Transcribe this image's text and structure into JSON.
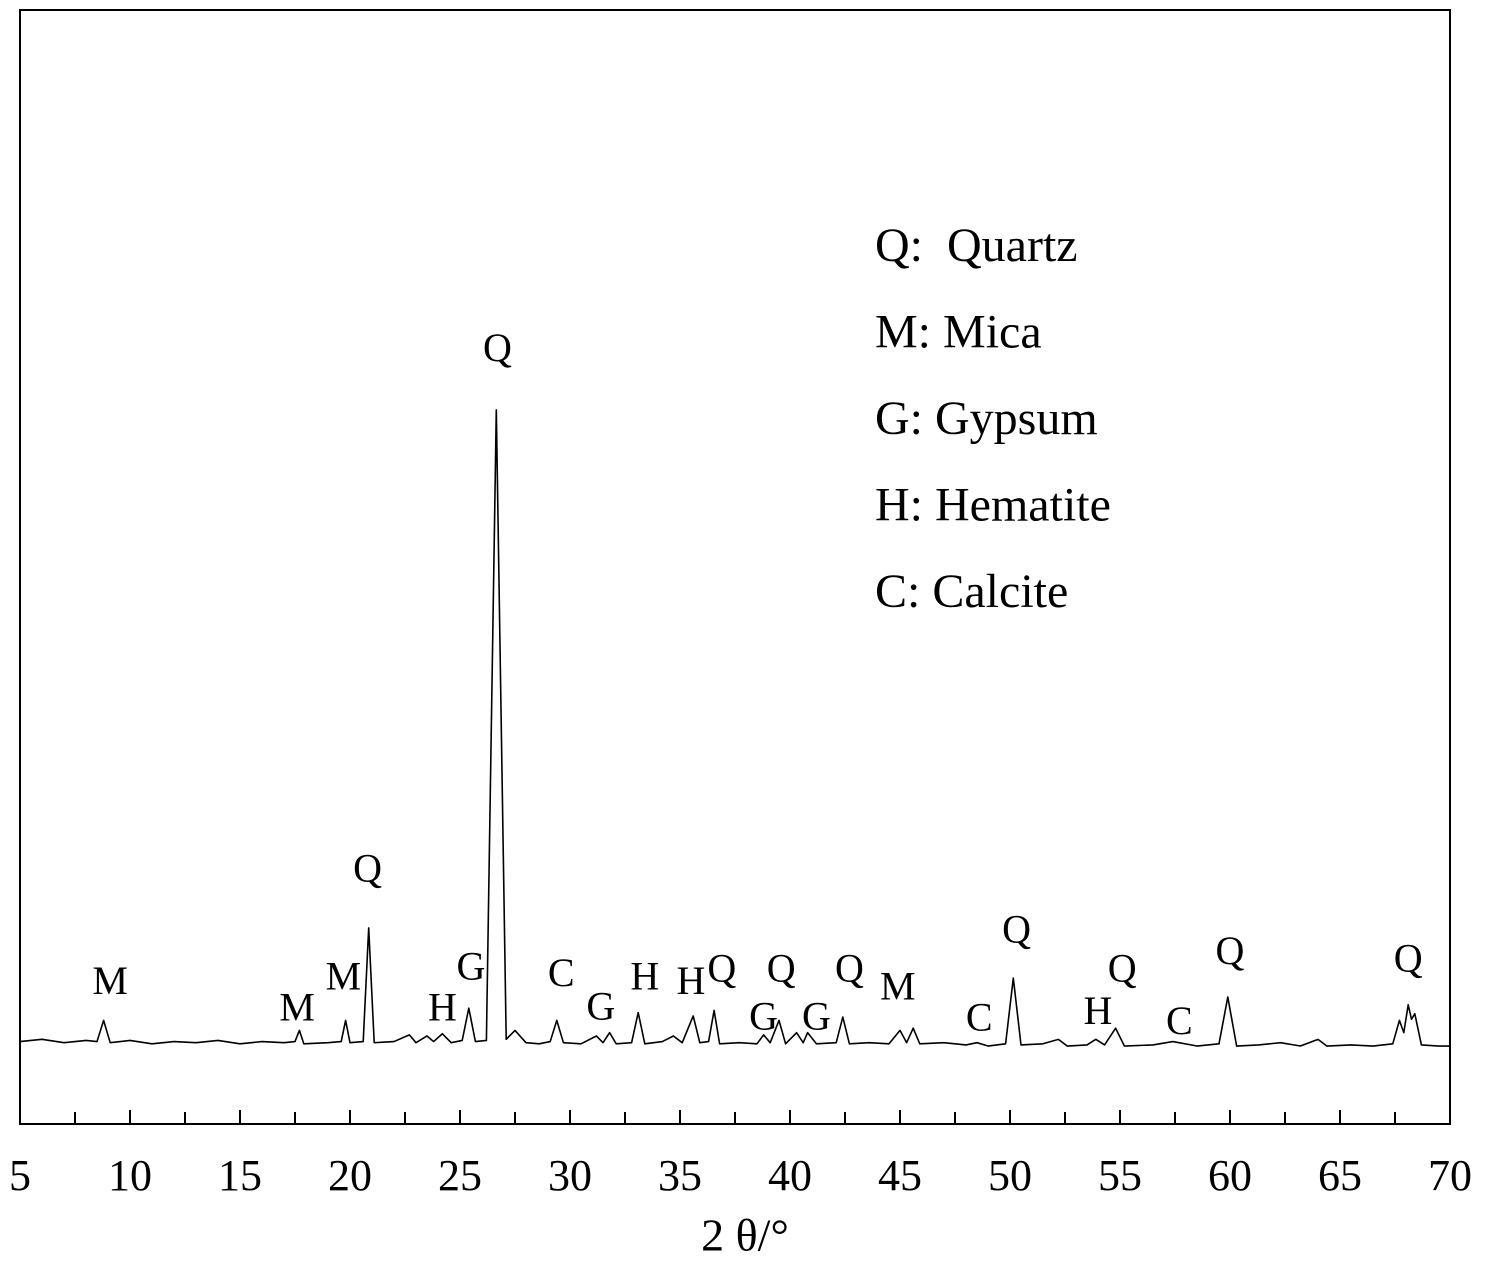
{
  "chart_data": {
    "type": "line",
    "x_label": "2 θ/°",
    "xlim": [
      5,
      70
    ],
    "xticks": [
      5,
      10,
      15,
      20,
      25,
      30,
      35,
      40,
      45,
      50,
      55,
      60,
      65,
      70
    ],
    "xminorticks": [
      7.5,
      12.5,
      17.5,
      22.5,
      27.5,
      32.5,
      37.5,
      42.5,
      47.5,
      52.5,
      57.5,
      62.5,
      67.5
    ],
    "ylim": [
      0,
      100
    ],
    "color": "#000000",
    "x": [
      5.0,
      6.0,
      7.0,
      8.0,
      8.5,
      8.8,
      9.1,
      10.0,
      11.0,
      12.0,
      13.0,
      14.0,
      15.0,
      16.0,
      17.0,
      17.5,
      17.7,
      17.9,
      19.0,
      19.6,
      19.8,
      20.0,
      20.6,
      20.85,
      21.1,
      22.0,
      22.7,
      23.0,
      23.5,
      23.8,
      24.2,
      24.6,
      25.1,
      25.4,
      25.7,
      26.2,
      26.65,
      27.1,
      27.5,
      28.0,
      28.6,
      29.1,
      29.4,
      29.7,
      30.5,
      31.2,
      31.5,
      31.8,
      32.1,
      32.8,
      33.1,
      33.4,
      34.2,
      34.7,
      35.1,
      35.6,
      35.9,
      36.3,
      36.55,
      36.8,
      37.7,
      38.5,
      38.8,
      39.1,
      39.5,
      39.8,
      40.3,
      40.6,
      40.8,
      41.2,
      42.1,
      42.4,
      42.7,
      43.6,
      44.5,
      45.0,
      45.3,
      45.6,
      45.9,
      47.0,
      48.0,
      48.5,
      49.0,
      49.8,
      50.15,
      50.5,
      51.5,
      52.2,
      52.6,
      53.5,
      53.9,
      54.3,
      54.8,
      55.2,
      56.5,
      57.4,
      58.5,
      59.5,
      59.9,
      60.3,
      61.3,
      62.3,
      63.2,
      64.0,
      64.4,
      65.5,
      66.5,
      67.4,
      67.7,
      67.9,
      68.1,
      68.25,
      68.4,
      68.7,
      69.5,
      70.0
    ],
    "values": [
      7.4,
      7.6,
      7.3,
      7.5,
      7.4,
      9.3,
      7.3,
      7.5,
      7.2,
      7.4,
      7.3,
      7.5,
      7.2,
      7.4,
      7.3,
      7.4,
      8.4,
      7.2,
      7.3,
      7.4,
      9.3,
      7.3,
      7.4,
      17.6,
      7.3,
      7.4,
      8.0,
      7.3,
      7.9,
      7.4,
      8.1,
      7.3,
      7.5,
      10.4,
      7.4,
      7.5,
      64.1,
      7.6,
      8.4,
      7.3,
      7.2,
      7.4,
      9.3,
      7.3,
      7.2,
      7.9,
      7.3,
      8.2,
      7.2,
      7.3,
      10.0,
      7.2,
      7.4,
      7.9,
      7.3,
      9.7,
      7.3,
      7.4,
      10.2,
      7.2,
      7.3,
      7.2,
      8.0,
      7.3,
      9.3,
      7.2,
      8.2,
      7.3,
      8.2,
      7.2,
      7.3,
      9.6,
      7.2,
      7.3,
      7.2,
      8.4,
      7.3,
      8.6,
      7.2,
      7.3,
      7.1,
      7.3,
      7.0,
      7.2,
      13.1,
      7.1,
      7.2,
      7.6,
      7.0,
      7.1,
      7.6,
      7.1,
      8.6,
      7.0,
      7.1,
      7.4,
      7.0,
      7.2,
      11.4,
      7.0,
      7.1,
      7.3,
      7.0,
      7.6,
      7.0,
      7.1,
      7.0,
      7.2,
      9.3,
      8.2,
      10.7,
      9.4,
      9.9,
      7.1,
      7.0,
      7.0
    ],
    "annotations": [
      {
        "text": "M",
        "x": 9.1,
        "y": 12.5
      },
      {
        "text": "M",
        "x": 17.6,
        "y": 10.1
      },
      {
        "text": "M",
        "x": 19.7,
        "y": 12.9
      },
      {
        "text": "Q",
        "x": 20.8,
        "y": 22.6
      },
      {
        "text": "H",
        "x": 24.2,
        "y": 10.1
      },
      {
        "text": "G",
        "x": 25.5,
        "y": 13.8
      },
      {
        "text": "Q",
        "x": 26.7,
        "y": 69.3
      },
      {
        "text": "C",
        "x": 29.6,
        "y": 13.2
      },
      {
        "text": "G",
        "x": 31.4,
        "y": 10.2
      },
      {
        "text": "H",
        "x": 33.4,
        "y": 12.9
      },
      {
        "text": "H",
        "x": 35.5,
        "y": 12.5
      },
      {
        "text": "Q",
        "x": 36.9,
        "y": 13.6
      },
      {
        "text": "G",
        "x": 38.8,
        "y": 9.3
      },
      {
        "text": "Q",
        "x": 39.6,
        "y": 13.6
      },
      {
        "text": "G",
        "x": 41.2,
        "y": 9.3
      },
      {
        "text": "Q",
        "x": 42.7,
        "y": 13.6
      },
      {
        "text": "M",
        "x": 44.9,
        "y": 12.0
      },
      {
        "text": "C",
        "x": 48.6,
        "y": 9.2
      },
      {
        "text": "Q",
        "x": 50.3,
        "y": 17.1
      },
      {
        "text": "H",
        "x": 54.0,
        "y": 9.8
      },
      {
        "text": "Q",
        "x": 55.1,
        "y": 13.6
      },
      {
        "text": "C",
        "x": 57.7,
        "y": 8.9
      },
      {
        "text": "Q",
        "x": 60.0,
        "y": 15.2
      },
      {
        "text": "Q",
        "x": 68.1,
        "y": 14.5
      }
    ],
    "legend_text": [
      "Q:  Quartz",
      "M: Mica",
      "G: Gypsum",
      "H: Hematite",
      "C: Calcite"
    ]
  }
}
